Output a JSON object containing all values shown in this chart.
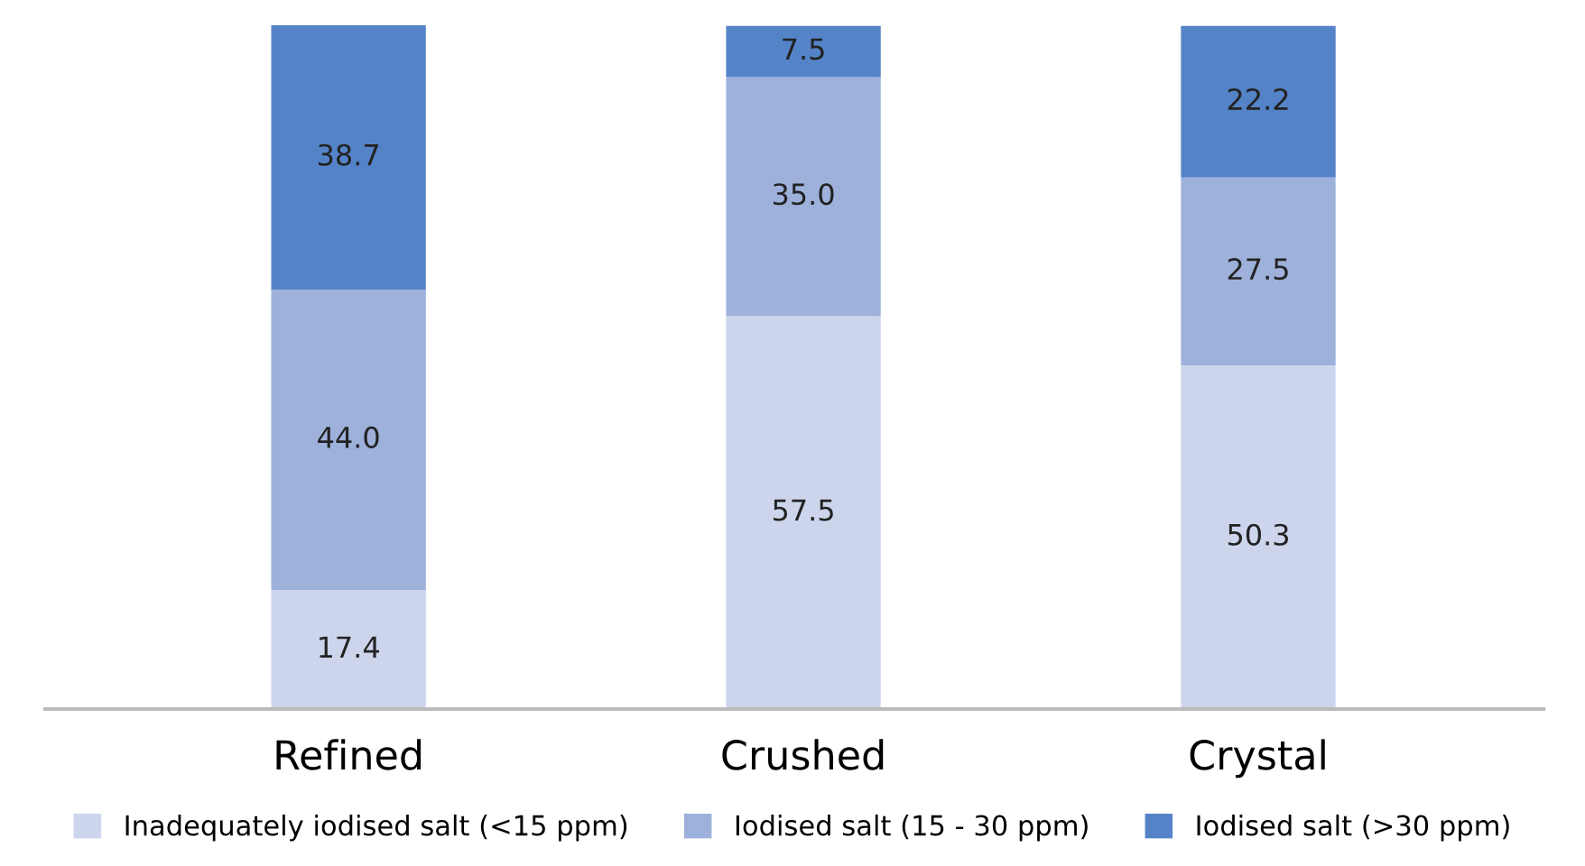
{
  "chart_data": {
    "type": "bar",
    "stacked": true,
    "grid": false,
    "legend": "bottom",
    "categories": [
      "Refined",
      "Crushed",
      "Crystal"
    ],
    "series": [
      {
        "name": "Inadequately iodised salt (<15 ppm)",
        "color": "#cdd5ec",
        "values": [
          17.4,
          57.5,
          50.3
        ],
        "value_labels": [
          "17.4",
          "57.5",
          "50.3"
        ]
      },
      {
        "name": "Iodised salt (15 - 30 ppm)",
        "color": "#9eb1db",
        "values": [
          44.0,
          35.0,
          27.5
        ],
        "value_labels": [
          "44.0",
          "35.0",
          "27.5"
        ]
      },
      {
        "name": "Iodised salt (>30 ppm)",
        "color": "#5583c7",
        "values": [
          38.7,
          7.5,
          22.2
        ],
        "value_labels": [
          "38.7",
          "7.5",
          "22.2"
        ]
      }
    ]
  }
}
